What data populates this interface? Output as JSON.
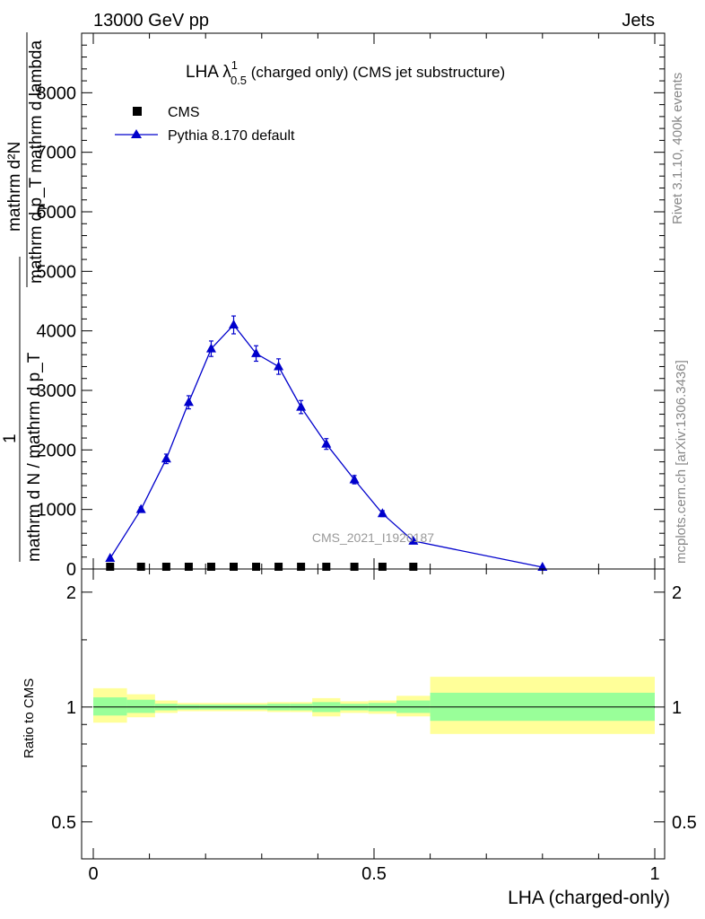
{
  "header": {
    "left": "13000 GeV pp",
    "right": "Jets"
  },
  "side": {
    "rivet": "Rivet 3.1.10,  400k events",
    "mcplots": "mcplots.cern.ch [arXiv:1306.3436]"
  },
  "chart_data": {
    "type": "line",
    "title_main": "LHA λ",
    "title_sup": "1",
    "title_sub": "0.5",
    "title_rest": " (charged only) (CMS jet substructure)",
    "watermark": "CMS_2021_I1920187",
    "xlabel": "LHA (charged-only)",
    "ylabel_upper": "mathrm d²N",
    "ylabel_lower": "mathrm d p_T mathrm d lambda",
    "ylabel_frac_one": "1",
    "ylabel_frac_den": "mathrm d N / mathrm d p_T",
    "ylabel_sub": "T",
    "ratio_ylabel": "Ratio to CMS",
    "xlim": [
      0,
      1
    ],
    "ylim": [
      0,
      9000
    ],
    "ratio_ylim": [
      0.4,
      2.3
    ],
    "x_ticks": [
      {
        "v": 0,
        "label": "0"
      },
      {
        "v": 0.5,
        "label": "0.5"
      },
      {
        "v": 1,
        "label": "1"
      }
    ],
    "y_ticks": [
      {
        "v": 0,
        "label": "0"
      },
      {
        "v": 1000,
        "label": "1000"
      },
      {
        "v": 2000,
        "label": "2000"
      },
      {
        "v": 3000,
        "label": "3000"
      },
      {
        "v": 4000,
        "label": "4000"
      },
      {
        "v": 5000,
        "label": "5000"
      },
      {
        "v": 6000,
        "label": "6000"
      },
      {
        "v": 7000,
        "label": "7000"
      },
      {
        "v": 8000,
        "label": "8000"
      }
    ],
    "ratio_ticks": [
      {
        "v": 0.5,
        "label": "0.5"
      },
      {
        "v": 1,
        "label": "1"
      },
      {
        "v": 2,
        "label": "2"
      }
    ],
    "series": [
      {
        "name": "CMS",
        "marker": "square",
        "color": "#000000",
        "x": [
          0.03,
          0.085,
          0.13,
          0.17,
          0.21,
          0.25,
          0.29,
          0.33,
          0.37,
          0.415,
          0.465,
          0.515,
          0.57
        ],
        "y": [
          15,
          15,
          15,
          15,
          15,
          15,
          15,
          15,
          15,
          15,
          15,
          15,
          15
        ]
      },
      {
        "name": "Pythia 8.170 default",
        "marker": "triangle",
        "color": "#0000cc",
        "x": [
          0.03,
          0.085,
          0.13,
          0.17,
          0.21,
          0.25,
          0.29,
          0.33,
          0.37,
          0.415,
          0.465,
          0.515,
          0.57,
          0.8
        ],
        "y": [
          180,
          1000,
          1850,
          2800,
          3700,
          4100,
          3620,
          3400,
          2720,
          2100,
          1500,
          930,
          470,
          30
        ],
        "err": [
          0,
          40,
          80,
          110,
          130,
          150,
          130,
          130,
          110,
          90,
          70,
          50,
          30,
          10
        ]
      }
    ],
    "ratio_bands": [
      {
        "x0": 0.0,
        "x1": 0.06,
        "inner": [
          0.95,
          1.06
        ],
        "outer": [
          0.91,
          1.12
        ]
      },
      {
        "x0": 0.06,
        "x1": 0.11,
        "inner": [
          0.965,
          1.045
        ],
        "outer": [
          0.94,
          1.08
        ]
      },
      {
        "x0": 0.11,
        "x1": 0.15,
        "inner": [
          0.98,
          1.02
        ],
        "outer": [
          0.965,
          1.04
        ]
      },
      {
        "x0": 0.15,
        "x1": 0.19,
        "inner": [
          0.985,
          1.015
        ],
        "outer": [
          0.975,
          1.025
        ]
      },
      {
        "x0": 0.19,
        "x1": 0.23,
        "inner": [
          0.985,
          1.015
        ],
        "outer": [
          0.975,
          1.025
        ]
      },
      {
        "x0": 0.23,
        "x1": 0.27,
        "inner": [
          0.985,
          1.015
        ],
        "outer": [
          0.975,
          1.025
        ]
      },
      {
        "x0": 0.27,
        "x1": 0.31,
        "inner": [
          0.985,
          1.015
        ],
        "outer": [
          0.975,
          1.025
        ]
      },
      {
        "x0": 0.31,
        "x1": 0.35,
        "inner": [
          0.98,
          1.02
        ],
        "outer": [
          0.97,
          1.03
        ]
      },
      {
        "x0": 0.35,
        "x1": 0.39,
        "inner": [
          0.98,
          1.02
        ],
        "outer": [
          0.97,
          1.03
        ]
      },
      {
        "x0": 0.39,
        "x1": 0.44,
        "inner": [
          0.97,
          1.03
        ],
        "outer": [
          0.945,
          1.055
        ]
      },
      {
        "x0": 0.44,
        "x1": 0.49,
        "inner": [
          0.98,
          1.02
        ],
        "outer": [
          0.965,
          1.035
        ]
      },
      {
        "x0": 0.49,
        "x1": 0.54,
        "inner": [
          0.975,
          1.025
        ],
        "outer": [
          0.96,
          1.04
        ]
      },
      {
        "x0": 0.54,
        "x1": 0.6,
        "inner": [
          0.965,
          1.04
        ],
        "outer": [
          0.945,
          1.07
        ]
      },
      {
        "x0": 0.6,
        "x1": 1.0,
        "inner": [
          0.92,
          1.09
        ],
        "outer": [
          0.85,
          1.2
        ]
      }
    ],
    "colors": {
      "inner_band": "#99ff99",
      "outer_band": "#ffff99",
      "mc": "#0000cc",
      "data": "#000000"
    }
  }
}
